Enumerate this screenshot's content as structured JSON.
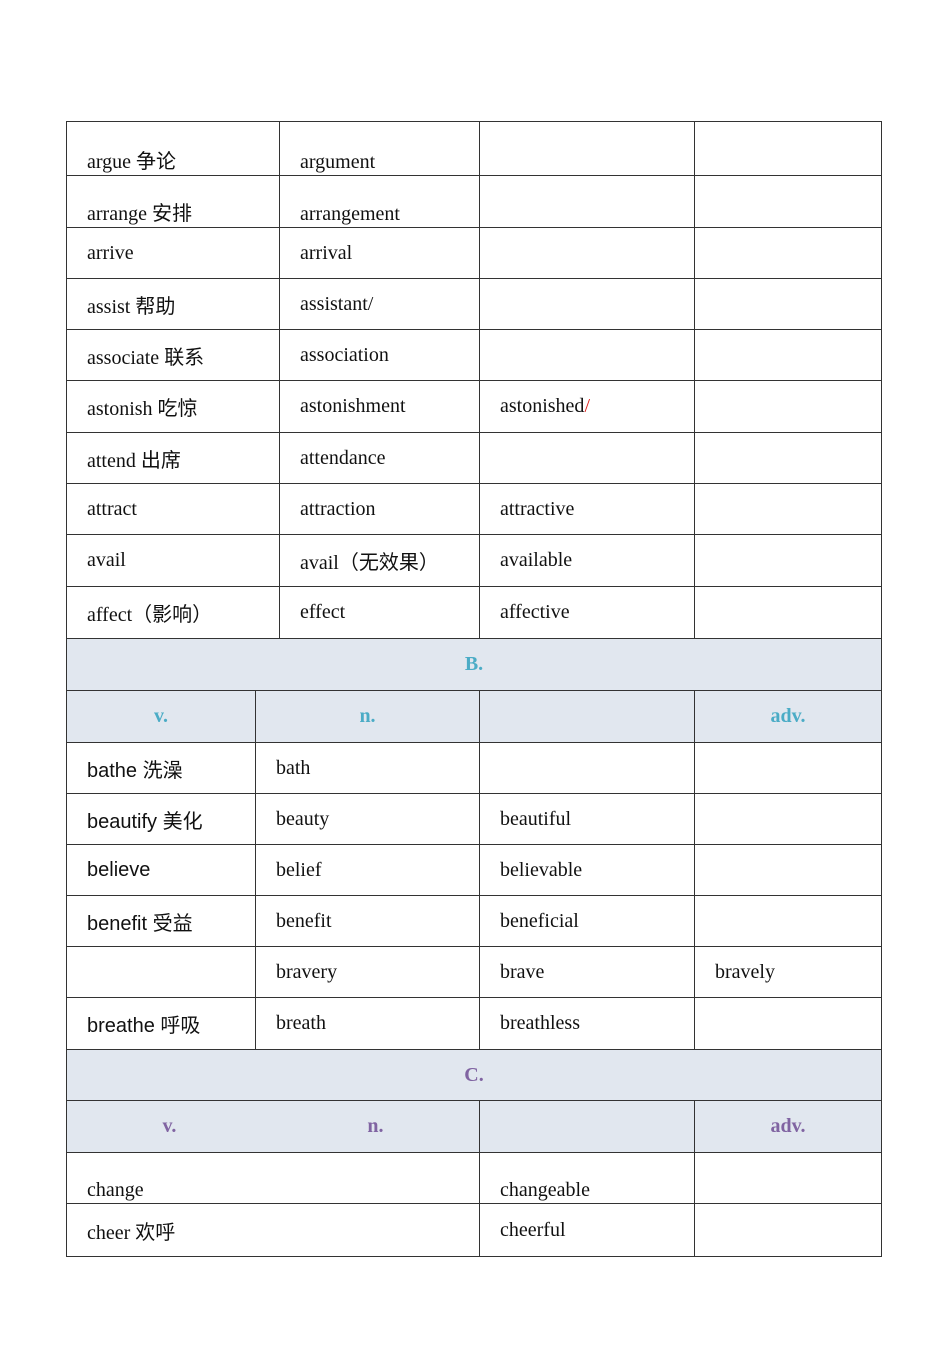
{
  "section_a": {
    "rows": [
      [
        "argue 争论",
        "argument",
        "",
        ""
      ],
      [
        "arrange 安排",
        "arrangement",
        "",
        ""
      ],
      [
        "arrive",
        "arrival",
        "",
        ""
      ],
      [
        "assist 帮助",
        "assistant/",
        "",
        ""
      ],
      [
        "associate 联系",
        "association",
        "",
        ""
      ],
      [
        "astonish 吃惊",
        "astonishment",
        "astonished",
        ""
      ],
      [
        "attend 出席",
        "attendance",
        "",
        ""
      ],
      [
        "attract",
        "attraction",
        "attractive",
        ""
      ],
      [
        "avail",
        "avail（无效果）",
        "available",
        ""
      ],
      [
        "affect（影响）",
        "effect",
        "affective",
        ""
      ]
    ],
    "red_slash": "/"
  },
  "section_b": {
    "title": "B.",
    "headers": [
      "v.",
      "n.",
      "",
      "adv."
    ],
    "rows": [
      [
        "bathe 洗澡",
        "bath",
        "",
        ""
      ],
      [
        "beautify 美化",
        "beauty",
        "beautiful",
        ""
      ],
      [
        "believe",
        "belief",
        "believable",
        ""
      ],
      [
        "benefit 受益",
        "benefit",
        "beneficial",
        ""
      ],
      [
        "",
        "bravery",
        "brave",
        "bravely"
      ],
      [
        "breathe 呼吸",
        "breath",
        "breathless",
        ""
      ]
    ]
  },
  "section_c": {
    "title": "C.",
    "headers": [
      "v.",
      "n.",
      "",
      "adv."
    ],
    "rows": [
      [
        "change",
        "changeable",
        ""
      ],
      [
        "cheer 欢呼",
        "cheerful",
        ""
      ]
    ]
  },
  "colors": {
    "b_header": "#4bacc6",
    "c_header": "#8064a2",
    "header_bg": "#e1e7ef",
    "slash": "#e0201b"
  }
}
